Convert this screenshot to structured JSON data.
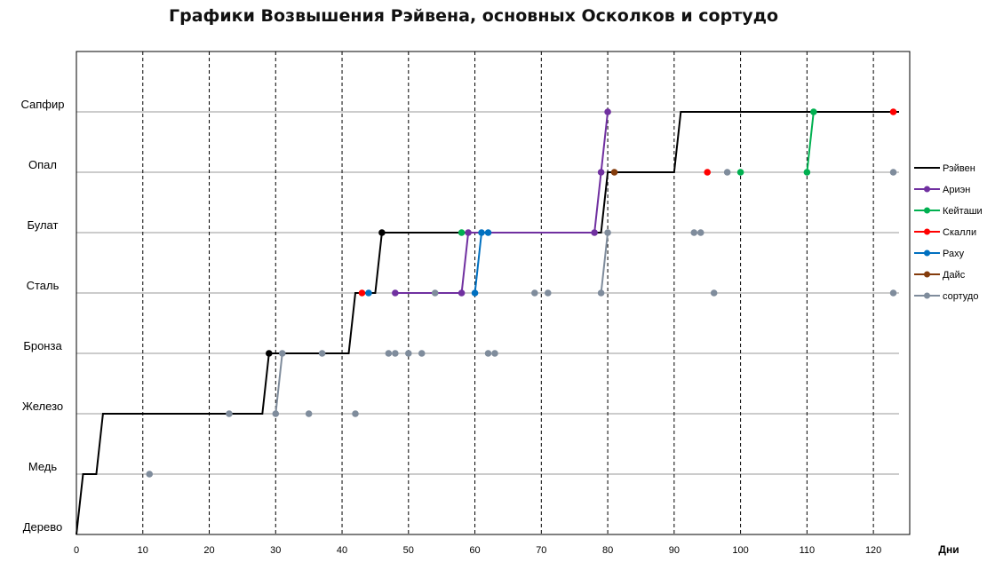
{
  "chart_data": {
    "type": "line",
    "title": "Графики Возвышения Рэйвена, основных Осколков и сортудо",
    "xlabel": "Дни",
    "ylabel": "",
    "xlim": [
      0,
      124
    ],
    "ylim": [
      0,
      7
    ],
    "x_ticks": [
      0,
      10,
      20,
      30,
      40,
      50,
      60,
      70,
      80,
      90,
      100,
      110,
      120
    ],
    "x_grid": "dashed vertical",
    "y_grid": "solid horizontal",
    "y_categories": [
      "Дерево",
      "Медь",
      "Железо",
      "Бронза",
      "Сталь",
      "Булат",
      "Опал",
      "Сапфир"
    ],
    "legend_position": "right",
    "series": [
      {
        "name": "Рэйвен",
        "color": "#000000",
        "marker": "none",
        "points": [
          [
            0,
            0
          ],
          [
            1,
            1
          ],
          [
            3,
            1
          ],
          [
            4,
            2
          ],
          [
            28,
            2
          ],
          [
            29,
            3
          ],
          [
            41,
            3
          ],
          [
            42,
            4
          ],
          [
            45,
            4
          ],
          [
            46,
            5
          ],
          [
            79,
            5
          ],
          [
            80,
            6
          ],
          [
            90,
            6
          ],
          [
            91,
            7
          ],
          [
            124,
            7
          ]
        ],
        "markers": [
          [
            29,
            3
          ],
          [
            46,
            5
          ]
        ]
      },
      {
        "name": "Ариэн",
        "color": "#7030a0",
        "marker": "circle",
        "points": [
          [
            48,
            4
          ],
          [
            58,
            4
          ],
          [
            59,
            5
          ],
          [
            78,
            5
          ],
          [
            79,
            6
          ],
          [
            80,
            7
          ]
        ],
        "markers": [
          [
            48,
            4
          ],
          [
            58,
            4
          ],
          [
            59,
            5
          ],
          [
            78,
            5
          ],
          [
            79,
            6
          ],
          [
            80,
            7
          ]
        ]
      },
      {
        "name": "Кейташи",
        "color": "#00b050",
        "marker": "circle",
        "points": [
          [
            58,
            5
          ],
          [
            100,
            6
          ],
          [
            110,
            6
          ],
          [
            111,
            7
          ]
        ],
        "markers": [
          [
            58,
            5
          ],
          [
            100,
            6
          ],
          [
            110,
            6
          ],
          [
            111,
            7
          ]
        ],
        "line_segments": [
          [
            [
              110,
              6
            ],
            [
              111,
              7
            ]
          ]
        ]
      },
      {
        "name": "Скалли",
        "color": "#ff0000",
        "marker": "circle",
        "points": [
          [
            43,
            4
          ],
          [
            95,
            6
          ],
          [
            123,
            7
          ]
        ],
        "markers": [
          [
            43,
            4
          ],
          [
            95,
            6
          ],
          [
            123,
            7
          ]
        ],
        "line_segments": []
      },
      {
        "name": "Раху",
        "color": "#0070c0",
        "marker": "circle",
        "points": [
          [
            44,
            4
          ],
          [
            60,
            4
          ],
          [
            61,
            5
          ],
          [
            62,
            5
          ]
        ],
        "markers": [
          [
            44,
            4
          ],
          [
            60,
            4
          ],
          [
            61,
            5
          ],
          [
            62,
            5
          ]
        ],
        "line_segments": [
          [
            [
              60,
              4
            ],
            [
              61,
              5
            ]
          ],
          [
            [
              61,
              5
            ],
            [
              62,
              5
            ]
          ]
        ]
      },
      {
        "name": "Дайс",
        "color": "#843c0c",
        "marker": "circle",
        "points": [
          [
            81,
            6
          ]
        ],
        "markers": [
          [
            81,
            6
          ]
        ],
        "line_segments": []
      },
      {
        "name": "сортудо",
        "color": "#7f8c9c",
        "marker": "circle",
        "markers": [
          [
            11,
            1
          ],
          [
            23,
            2
          ],
          [
            30,
            2
          ],
          [
            31,
            3
          ],
          [
            35,
            2
          ],
          [
            37,
            3
          ],
          [
            42,
            2
          ],
          [
            47,
            3
          ],
          [
            48,
            3
          ],
          [
            50,
            3
          ],
          [
            52,
            3
          ],
          [
            54,
            4
          ],
          [
            62,
            3
          ],
          [
            63,
            3
          ],
          [
            69,
            4
          ],
          [
            71,
            4
          ],
          [
            79,
            4
          ],
          [
            80,
            5
          ],
          [
            93,
            5
          ],
          [
            94,
            5
          ],
          [
            96,
            4
          ],
          [
            98,
            6
          ],
          [
            123,
            4
          ],
          [
            123,
            6
          ]
        ],
        "line_segments": [
          [
            [
              30,
              2
            ],
            [
              31,
              3
            ]
          ],
          [
            [
              79,
              4
            ],
            [
              80,
              5
            ]
          ]
        ]
      }
    ]
  }
}
